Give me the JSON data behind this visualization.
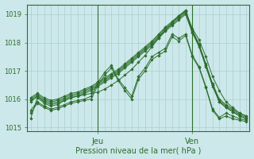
{
  "background_color": "#cce8ea",
  "grid_color": "#aacfd2",
  "line_color": "#2d6e2d",
  "marker_color": "#2d6e2d",
  "xlabel": "Pression niveau de la mer( hPa )",
  "xlabel_ticks": [
    "Jeu",
    "Ven"
  ],
  "ylim": [
    1014.85,
    1019.35
  ],
  "xlim_n": 33,
  "jeu_xi": 10,
  "ven_xi": 24,
  "series": [
    [
      1015.3,
      1016.05,
      1015.85,
      1015.75,
      1015.8,
      1015.95,
      1016.05,
      1016.1,
      1016.15,
      1016.2,
      1016.25,
      1016.35,
      1016.5,
      1016.65,
      1016.85,
      1017.05,
      1017.3,
      1017.55,
      1017.85,
      1018.15,
      1018.45,
      1018.7,
      1018.95,
      1019.1,
      1018.5,
      1018.1,
      1017.5,
      1016.8,
      1016.3,
      1015.9,
      1015.7,
      1015.5,
      1015.4
    ],
    [
      1015.9,
      1016.1,
      1015.9,
      1015.8,
      1015.85,
      1015.95,
      1016.05,
      1016.1,
      1016.2,
      1016.3,
      1016.45,
      1016.6,
      1016.75,
      1016.9,
      1017.1,
      1017.3,
      1017.5,
      1017.7,
      1017.9,
      1018.15,
      1018.4,
      1018.6,
      1018.8,
      1019.0,
      1018.35,
      1017.9,
      1017.2,
      1016.5,
      1015.9,
      1015.7,
      1015.55,
      1015.4,
      1015.3
    ],
    [
      1015.95,
      1016.1,
      1015.95,
      1015.85,
      1015.9,
      1016.0,
      1016.1,
      1016.15,
      1016.25,
      1016.35,
      1016.5,
      1016.65,
      1016.8,
      1016.95,
      1017.15,
      1017.35,
      1017.55,
      1017.75,
      1017.95,
      1018.2,
      1018.45,
      1018.65,
      1018.85,
      1019.05,
      1018.35,
      1017.85,
      1017.15,
      1016.45,
      1015.9,
      1015.7,
      1015.55,
      1015.4,
      1015.3
    ],
    [
      1016.0,
      1016.15,
      1016.0,
      1015.9,
      1015.95,
      1016.05,
      1016.15,
      1016.2,
      1016.3,
      1016.4,
      1016.55,
      1016.7,
      1016.85,
      1017.0,
      1017.2,
      1017.4,
      1017.6,
      1017.8,
      1018.0,
      1018.25,
      1018.5,
      1018.7,
      1018.9,
      1019.1,
      1018.4,
      1017.9,
      1017.2,
      1016.5,
      1015.95,
      1015.75,
      1015.6,
      1015.45,
      1015.35
    ],
    [
      1016.05,
      1016.2,
      1016.05,
      1015.95,
      1016.0,
      1016.1,
      1016.2,
      1016.25,
      1016.35,
      1016.45,
      1016.6,
      1016.75,
      1016.9,
      1017.05,
      1017.25,
      1017.45,
      1017.65,
      1017.85,
      1018.05,
      1018.3,
      1018.55,
      1018.75,
      1018.95,
      1019.15,
      1018.45,
      1017.95,
      1017.25,
      1016.55,
      1016.0,
      1015.8,
      1015.65,
      1015.5,
      1015.4
    ],
    [
      1015.5,
      1015.85,
      1015.7,
      1015.6,
      1015.65,
      1015.75,
      1015.85,
      1015.9,
      1015.95,
      1016.0,
      1016.5,
      1016.85,
      1017.1,
      1016.65,
      1016.3,
      1016.0,
      1016.7,
      1017.0,
      1017.4,
      1017.55,
      1017.7,
      1018.2,
      1018.05,
      1018.25,
      1017.5,
      1017.1,
      1016.4,
      1015.6,
      1015.3,
      1015.4,
      1015.3,
      1015.25,
      1015.2
    ],
    [
      1015.6,
      1015.9,
      1015.75,
      1015.65,
      1015.7,
      1015.8,
      1015.9,
      1015.95,
      1016.0,
      1016.1,
      1016.6,
      1016.95,
      1017.2,
      1016.7,
      1016.4,
      1016.1,
      1016.8,
      1017.1,
      1017.5,
      1017.65,
      1017.8,
      1018.3,
      1018.15,
      1018.3,
      1017.55,
      1017.15,
      1016.45,
      1015.65,
      1015.35,
      1015.5,
      1015.4,
      1015.3,
      1015.25
    ]
  ]
}
